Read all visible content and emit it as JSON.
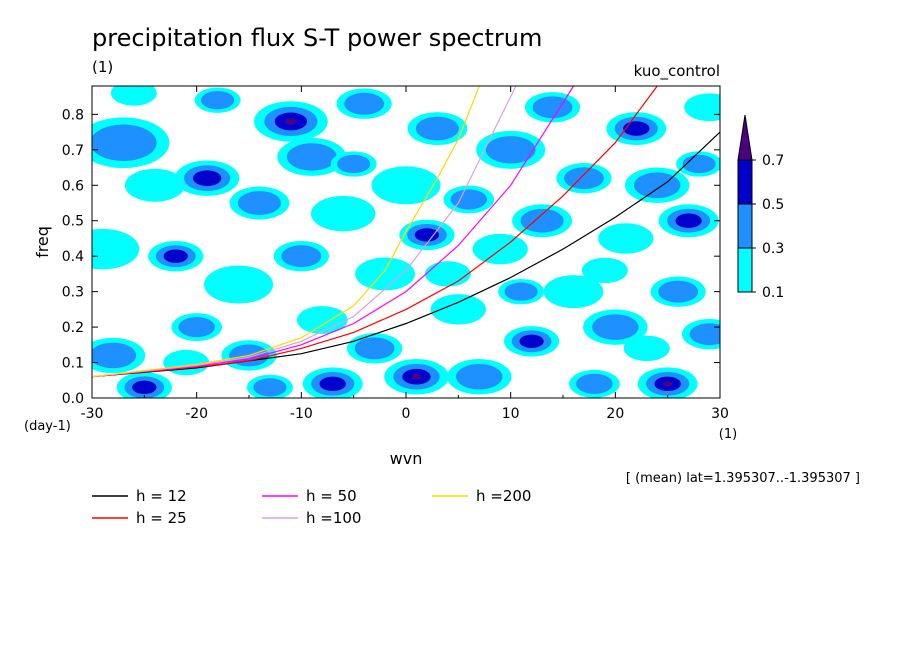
{
  "chart_data": {
    "type": "heatmap",
    "title": "precipitation flux S-T power spectrum",
    "units": "(1)",
    "experiment": "kuo_control",
    "xlabel": "wvn",
    "xunits": "(1)",
    "ylabel": "freq",
    "yunits": "(day-1)",
    "xlim": [
      -30,
      30
    ],
    "ylim": [
      0,
      0.88
    ],
    "x_ticks": [
      -30,
      -20,
      -10,
      0,
      10,
      20,
      30
    ],
    "y_ticks": [
      0.0,
      0.1,
      0.2,
      0.3,
      0.4,
      0.5,
      0.6,
      0.7,
      0.8
    ],
    "x_tick_labels": [
      "-30",
      "-20",
      "-10",
      "0",
      "10",
      "20",
      "30"
    ],
    "y_tick_labels": [
      "0.0",
      "0.1",
      "0.2",
      "0.3",
      "0.4",
      "0.5",
      "0.6",
      "0.7",
      "0.8"
    ],
    "annotation": "[ (mean) lat=1.395307..-1.395307 ]",
    "colorbar": {
      "levels": [
        0.1,
        0.3,
        0.5,
        0.7
      ],
      "level_labels": [
        "0.1",
        "0.3",
        "0.5",
        "0.7"
      ],
      "colors": [
        "#00ffff",
        "#1e90ff",
        "#0000cd",
        "#4b0082"
      ]
    },
    "series": [
      {
        "name": "h = 12",
        "color": "#000000",
        "x": [
          -30,
          -20,
          -10,
          -5,
          0,
          5,
          10,
          15,
          20,
          25,
          30
        ],
        "y": [
          0.06,
          0.085,
          0.125,
          0.16,
          0.21,
          0.27,
          0.34,
          0.42,
          0.51,
          0.61,
          0.75
        ]
      },
      {
        "name": "h = 25",
        "color": "#ff0000",
        "x": [
          -30,
          -20,
          -15,
          -10,
          -5,
          0,
          5,
          10,
          15,
          20,
          24
        ],
        "y": [
          0.06,
          0.087,
          0.105,
          0.14,
          0.185,
          0.25,
          0.33,
          0.44,
          0.57,
          0.72,
          0.88
        ]
      },
      {
        "name": "h = 50",
        "color": "#ff00ff",
        "x": [
          -30,
          -20,
          -15,
          -10,
          -5,
          0,
          5,
          10,
          16
        ],
        "y": [
          0.06,
          0.09,
          0.11,
          0.15,
          0.21,
          0.3,
          0.43,
          0.6,
          0.88
        ]
      },
      {
        "name": "h =100",
        "color": "#dda0dd",
        "x": [
          -30,
          -20,
          -15,
          -10,
          -5,
          0,
          5,
          10.5
        ],
        "y": [
          0.06,
          0.092,
          0.115,
          0.16,
          0.23,
          0.36,
          0.55,
          0.88
        ]
      },
      {
        "name": "h =200",
        "color": "#ffd700",
        "x": [
          -30,
          -20,
          -15,
          -10,
          -5,
          -2,
          0,
          3,
          5,
          7
        ],
        "y": [
          0.06,
          0.095,
          0.12,
          0.17,
          0.26,
          0.36,
          0.47,
          0.62,
          0.73,
          0.88
        ]
      }
    ],
    "blobs": [
      {
        "x": -28,
        "y": 0.12,
        "r": 1.4,
        "level": 1
      },
      {
        "x": -25,
        "y": 0.03,
        "r": 1.2,
        "level": 2
      },
      {
        "x": -29,
        "y": 0.42,
        "r": 1.6,
        "level": 0
      },
      {
        "x": -27,
        "y": 0.72,
        "r": 2.0,
        "level": 1
      },
      {
        "x": -24,
        "y": 0.6,
        "r": 1.3,
        "level": 0
      },
      {
        "x": -22,
        "y": 0.4,
        "r": 1.2,
        "level": 2
      },
      {
        "x": -20,
        "y": 0.2,
        "r": 1.1,
        "level": 1
      },
      {
        "x": -19,
        "y": 0.62,
        "r": 1.4,
        "level": 2
      },
      {
        "x": -18,
        "y": 0.84,
        "r": 1.0,
        "level": 1
      },
      {
        "x": -16,
        "y": 0.32,
        "r": 1.5,
        "level": 0
      },
      {
        "x": -14,
        "y": 0.55,
        "r": 1.3,
        "level": 1
      },
      {
        "x": -13,
        "y": 0.03,
        "r": 1.0,
        "level": 1
      },
      {
        "x": -11,
        "y": 0.78,
        "r": 1.6,
        "level": 3
      },
      {
        "x": -10,
        "y": 0.4,
        "r": 1.2,
        "level": 1
      },
      {
        "x": -9,
        "y": 0.68,
        "r": 1.5,
        "level": 1
      },
      {
        "x": -8,
        "y": 0.22,
        "r": 1.1,
        "level": 0
      },
      {
        "x": -7,
        "y": 0.04,
        "r": 1.3,
        "level": 2
      },
      {
        "x": -6,
        "y": 0.52,
        "r": 1.4,
        "level": 0
      },
      {
        "x": -4,
        "y": 0.83,
        "r": 1.2,
        "level": 1
      },
      {
        "x": -3,
        "y": 0.14,
        "r": 1.2,
        "level": 1
      },
      {
        "x": -2,
        "y": 0.35,
        "r": 1.3,
        "level": 0
      },
      {
        "x": 0,
        "y": 0.6,
        "r": 1.5,
        "level": 0
      },
      {
        "x": 1,
        "y": 0.06,
        "r": 1.4,
        "level": 3
      },
      {
        "x": 2,
        "y": 0.46,
        "r": 1.2,
        "level": 2
      },
      {
        "x": 3,
        "y": 0.76,
        "r": 1.3,
        "level": 1
      },
      {
        "x": 5,
        "y": 0.25,
        "r": 1.2,
        "level": 0
      },
      {
        "x": 6,
        "y": 0.56,
        "r": 1.1,
        "level": 1
      },
      {
        "x": 7,
        "y": 0.06,
        "r": 1.4,
        "level": 1
      },
      {
        "x": 9,
        "y": 0.42,
        "r": 1.2,
        "level": 0
      },
      {
        "x": 10,
        "y": 0.7,
        "r": 1.5,
        "level": 1
      },
      {
        "x": 12,
        "y": 0.16,
        "r": 1.2,
        "level": 2
      },
      {
        "x": 13,
        "y": 0.5,
        "r": 1.3,
        "level": 1
      },
      {
        "x": 14,
        "y": 0.82,
        "r": 1.2,
        "level": 1
      },
      {
        "x": 16,
        "y": 0.3,
        "r": 1.3,
        "level": 0
      },
      {
        "x": 17,
        "y": 0.62,
        "r": 1.2,
        "level": 1
      },
      {
        "x": 18,
        "y": 0.04,
        "r": 1.1,
        "level": 1
      },
      {
        "x": 20,
        "y": 0.2,
        "r": 1.4,
        "level": 1
      },
      {
        "x": 21,
        "y": 0.45,
        "r": 1.2,
        "level": 0
      },
      {
        "x": 22,
        "y": 0.76,
        "r": 1.3,
        "level": 2
      },
      {
        "x": 24,
        "y": 0.6,
        "r": 1.4,
        "level": 1
      },
      {
        "x": 25,
        "y": 0.04,
        "r": 1.3,
        "level": 3
      },
      {
        "x": 26,
        "y": 0.3,
        "r": 1.2,
        "level": 1
      },
      {
        "x": 27,
        "y": 0.5,
        "r": 1.3,
        "level": 2
      },
      {
        "x": 29,
        "y": 0.18,
        "r": 1.2,
        "level": 1
      },
      {
        "x": 29,
        "y": 0.82,
        "r": 1.1,
        "level": 0
      },
      {
        "x": -26,
        "y": 0.86,
        "r": 1.0,
        "level": 0
      },
      {
        "x": -21,
        "y": 0.1,
        "r": 1.0,
        "level": 0
      },
      {
        "x": -15,
        "y": 0.12,
        "r": 1.2,
        "level": 1
      },
      {
        "x": -5,
        "y": 0.66,
        "r": 1.0,
        "level": 1
      },
      {
        "x": 4,
        "y": 0.35,
        "r": 1.0,
        "level": 0
      },
      {
        "x": 11,
        "y": 0.3,
        "r": 1.0,
        "level": 1
      },
      {
        "x": 19,
        "y": 0.36,
        "r": 1.0,
        "level": 0
      },
      {
        "x": 23,
        "y": 0.14,
        "r": 1.0,
        "level": 0
      },
      {
        "x": 28,
        "y": 0.66,
        "r": 1.0,
        "level": 1
      }
    ]
  }
}
